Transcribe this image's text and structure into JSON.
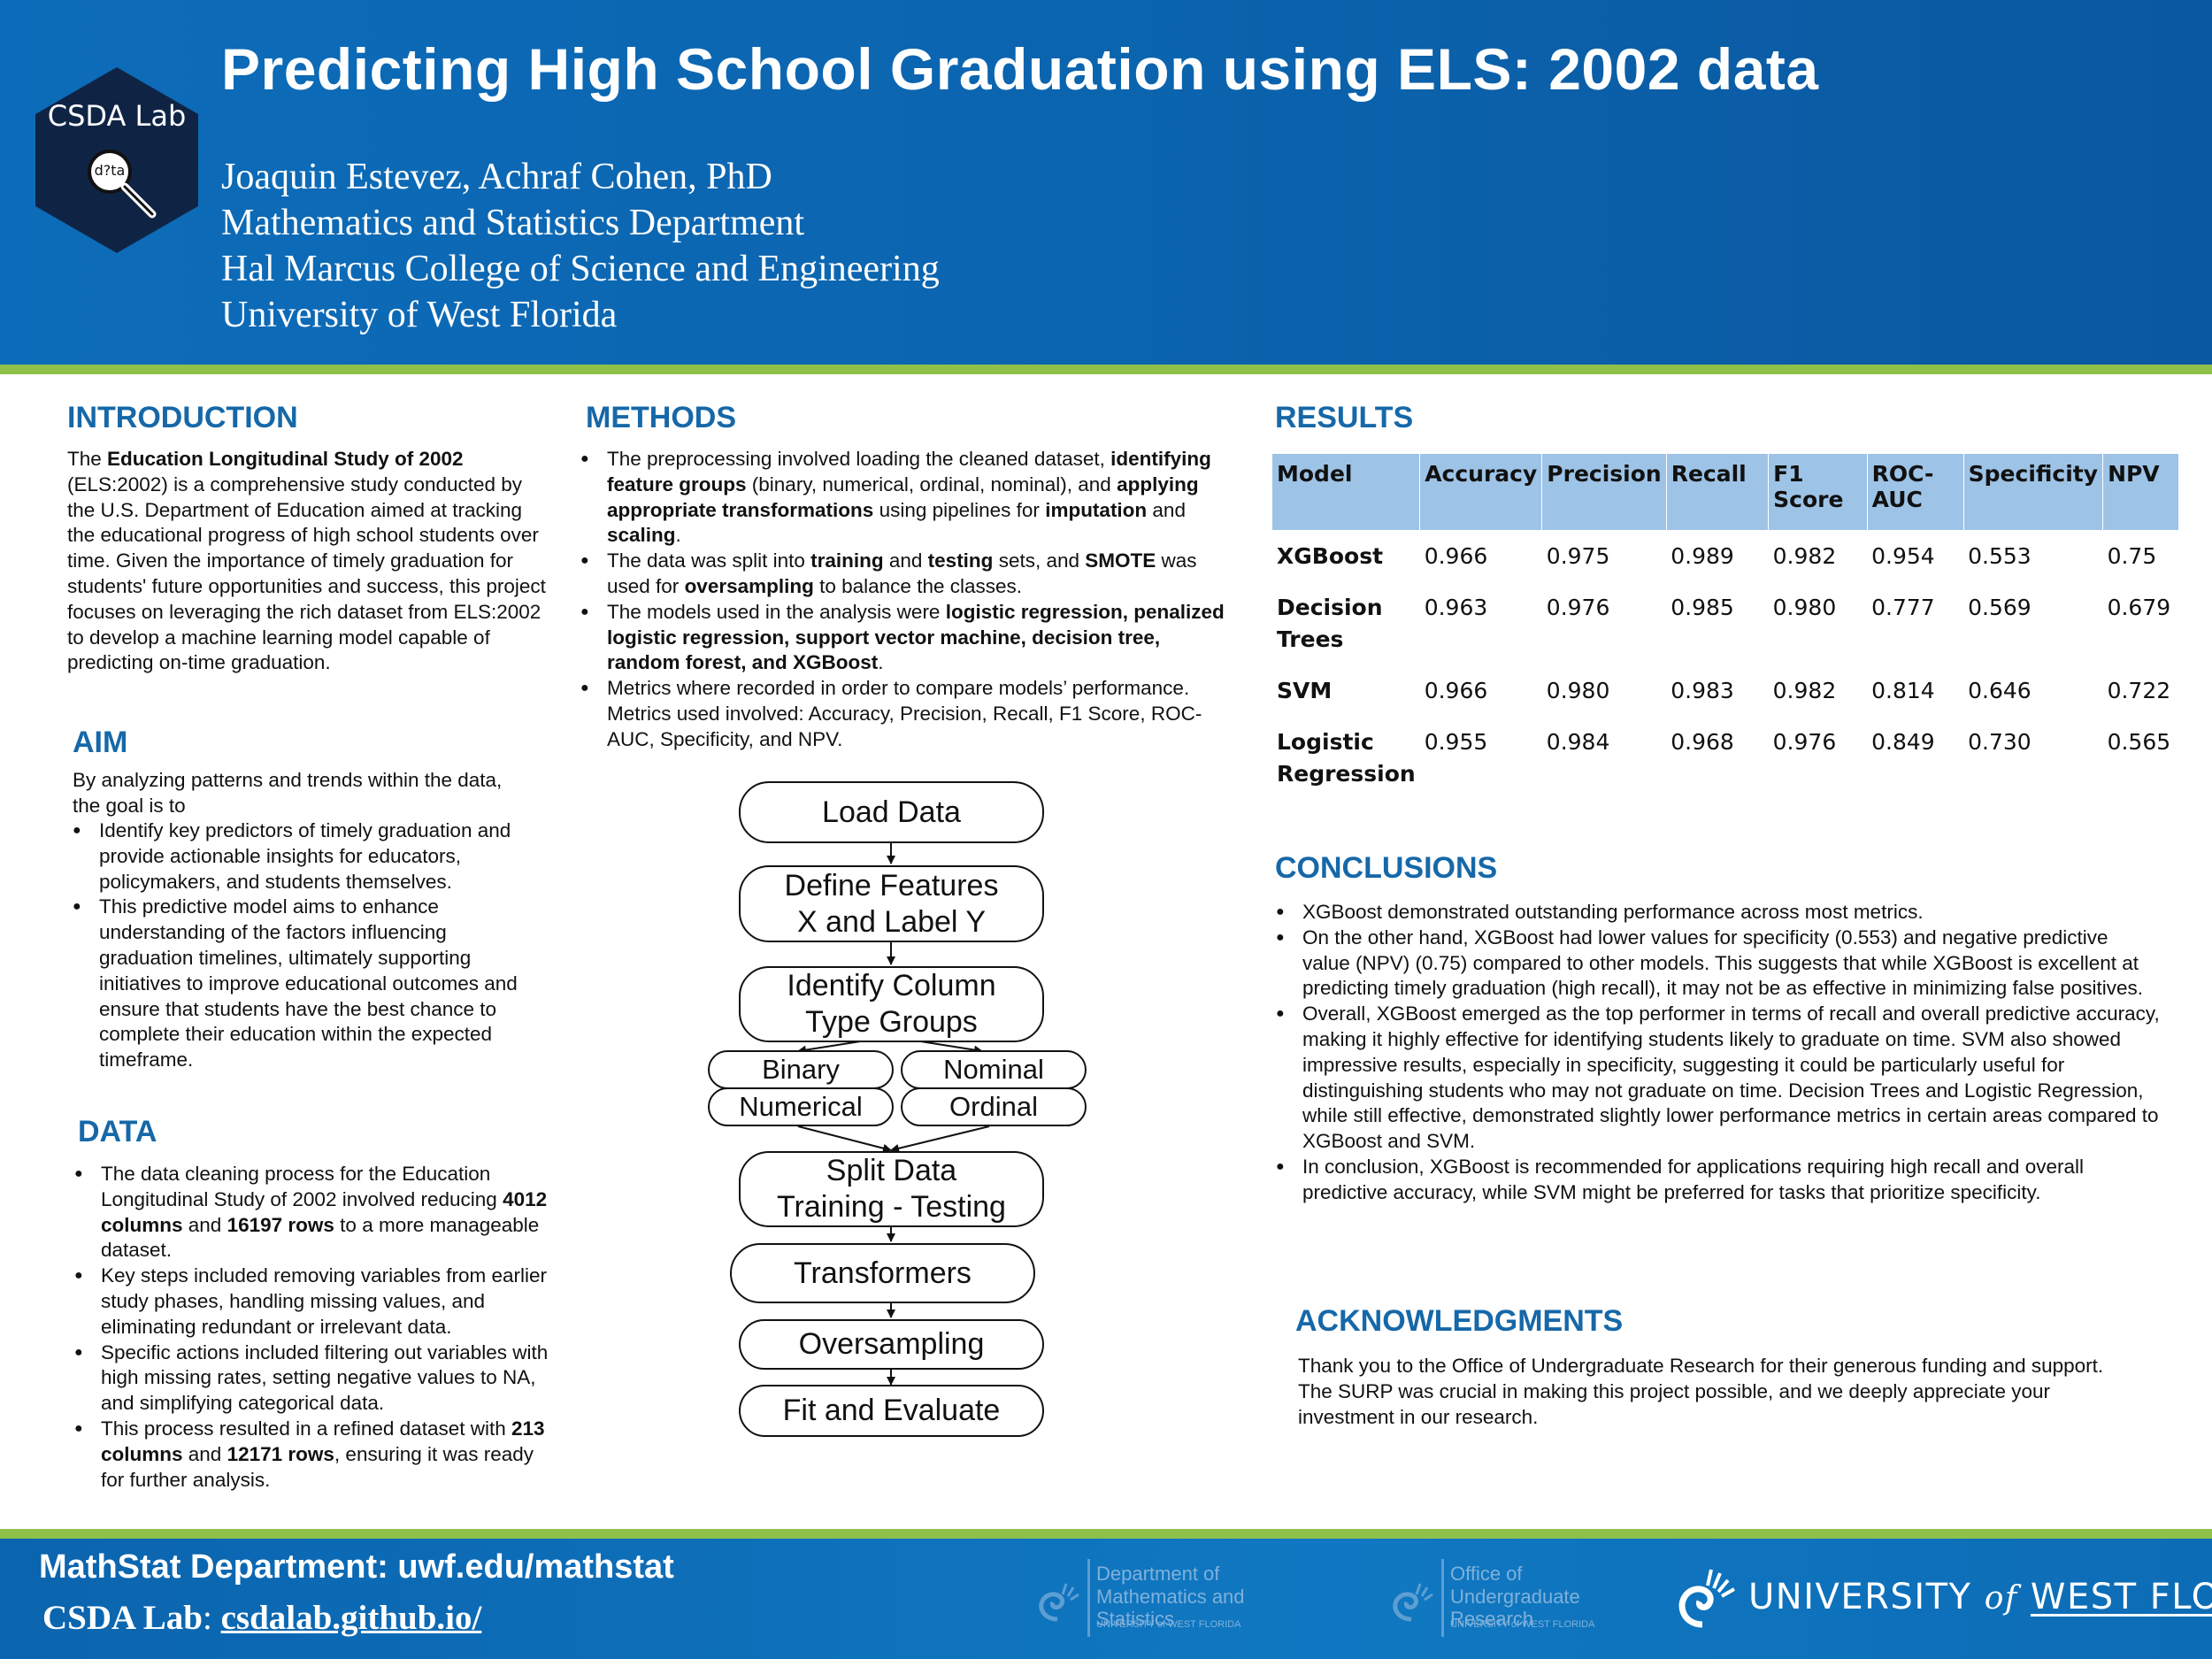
{
  "header": {
    "title": "Predicting High School Graduation using ELS: 2002 data",
    "lab_logo_text": "CSDA Lab",
    "lab_logo_glyph": "d?ta",
    "authors": "Joaquin Estevez, Achraf Cohen, PhD",
    "department": "Mathematics and Statistics Department",
    "college": "Hal Marcus College of Science and Engineering",
    "university": "University of West Florida"
  },
  "introduction": {
    "heading": "INTRODUCTION",
    "p1": "The ",
    "p2": "Education Longitudinal Study of 2002",
    "p3": " (ELS:2002) is a comprehensive study conducted by the U.S. Department of Education aimed at tracking the educational progress of high school students over time. Given the importance of timely graduation for students' future opportunities and success, this project focuses on leveraging the rich dataset from ELS:2002 to develop a machine learning model capable of predicting on-time graduation."
  },
  "aim": {
    "heading": "AIM",
    "intro": "By analyzing patterns and trends within the data, the goal is to",
    "bullets": [
      "Identify key predictors of timely graduation and provide actionable insights for educators, policymakers, and students themselves.",
      "This predictive model aims to enhance understanding of the factors influencing graduation timelines, ultimately supporting initiatives to improve educational outcomes and ensure that students have the best chance to complete their education within the expected timeframe."
    ]
  },
  "data": {
    "heading": "DATA",
    "b1a": "The data cleaning process for the Education Longitudinal Study of 2002 involved reducing ",
    "b1b": "4012 columns",
    "b1c": " and ",
    "b1d": "16197 rows",
    "b1e": " to a more manageable dataset.",
    "b2": "Key steps included removing variables from earlier study phases, handling missing values, and eliminating redundant or irrelevant data.",
    "b3": "Specific actions included filtering out variables with high missing rates, setting negative values to NA, and simplifying categorical data.",
    "b4a": "This process resulted in a refined dataset with ",
    "b4b": "213 columns",
    "b4c": " and ",
    "b4d": "12171 rows",
    "b4e": ", ensuring it was ready for further analysis."
  },
  "methods": {
    "heading": "METHODS",
    "b1a": "The preprocessing involved loading the cleaned dataset, ",
    "b1b": "identifying feature groups",
    "b1c": " (binary, numerical, ordinal, nominal), and ",
    "b1d": "applying appropriate transformations",
    "b1e": " using pipelines for ",
    "b1f": "imputation",
    "b1g": " and ",
    "b1h": "scaling",
    "b1i": ".",
    "b2a": "The data was split into ",
    "b2b": "training",
    "b2c": " and ",
    "b2d": "testing",
    "b2e": " sets, and ",
    "b2f": "SMOTE",
    "b2g": " was used for ",
    "b2h": "oversampling",
    "b2i": " to balance the classes.",
    "b3a": "The models used in the analysis were ",
    "b3b": "logistic regression, penalized logistic regression, support vector machine, decision tree, random forest, and XGBoost",
    "b3c": ".",
    "b4": "Metrics where recorded in order to compare models’ performance. Metrics used involved: Accuracy, Precision, Recall, F1 Score, ROC-AUC, Specificity, and NPV."
  },
  "flowchart": {
    "load": "Load Data",
    "define_1": "Define Features",
    "define_2": "X and Label Y",
    "identify_1": "Identify Column",
    "identify_2": "Type Groups",
    "binary": "Binary",
    "nominal": "Nominal",
    "numerical": "Numerical",
    "ordinal": "Ordinal",
    "split_1": "Split Data",
    "split_2": "Training - Testing",
    "transformers": "Transformers",
    "oversampling": "Oversampling",
    "fit": "Fit and Evaluate"
  },
  "results": {
    "heading": "RESULTS",
    "columns": [
      "Model",
      "Accuracy",
      "Precision",
      "Recall",
      "F1 Score",
      "ROC-AUC",
      "Specificity",
      "NPV"
    ],
    "rows": [
      [
        "XGBoost",
        "0.966",
        "0.975",
        "0.989",
        "0.982",
        "0.954",
        "0.553",
        "0.75"
      ],
      [
        "Decision Trees",
        "0.963",
        "0.976",
        "0.985",
        "0.980",
        "0.777",
        "0.569",
        "0.679"
      ],
      [
        "SVM",
        "0.966",
        "0.980",
        "0.983",
        "0.982",
        "0.814",
        "0.646",
        "0.722"
      ],
      [
        "Logistic Regression",
        "0.955",
        "0.984",
        "0.968",
        "0.976",
        "0.849",
        "0.730",
        "0.565"
      ]
    ]
  },
  "conclusions": {
    "heading": "CONCLUSIONS",
    "bullets": [
      "XGBoost demonstrated outstanding performance across most metrics.",
      "On the other hand, XGBoost had lower values for specificity (0.553) and negative predictive value (NPV) (0.75) compared to other models. This suggests that while XGBoost is excellent at predicting timely graduation (high recall), it may not be as effective in minimizing false positives.",
      "Overall, XGBoost emerged as the top performer in terms of recall and overall predictive accuracy, making it highly effective for identifying students likely to graduate on time. SVM also showed impressive results, especially in specificity, suggesting it could be particularly useful for distinguishing students who may not graduate on time. Decision Trees and Logistic Regression, while still effective, demonstrated slightly lower performance metrics in certain areas compared to XGBoost and SVM.",
      "In conclusion, XGBoost is recommended for applications requiring high recall and overall predictive accuracy, while SVM might be preferred for tasks that prioritize specificity."
    ]
  },
  "acknowledgments": {
    "heading": "ACKNOWLEDGMENTS",
    "text": "Thank you to the Office of Undergraduate Research for their generous funding and support. The SURP was crucial in making this project possible, and we deeply appreciate your investment in our research."
  },
  "footer": {
    "mathstat": "MathStat Department: uwf.edu/mathstat",
    "csda_label": "CSDA Lab",
    "csda_sep": ": ",
    "csda_link": "csdalab.github.io/",
    "logo1_line1": "Department of",
    "logo1_line2": "Mathematics and Statistics",
    "logo1_line3": "UNIVERSITY of WEST FLORIDA",
    "logo2_line1": "Office of",
    "logo2_line2": "Undergraduate Research",
    "logo2_line3": "UNIVERSITY of WEST FLORIDA",
    "uwf_a": "UNIVERSITY",
    "uwf_b": "of",
    "uwf_c": "WEST FLORIDA"
  },
  "colors": {
    "header_blue": "#0b63ad",
    "accent_green": "#8fc04a",
    "heading_blue": "#1668a8",
    "table_header": "#9dc3e6",
    "logo_navy": "#0f2445"
  }
}
